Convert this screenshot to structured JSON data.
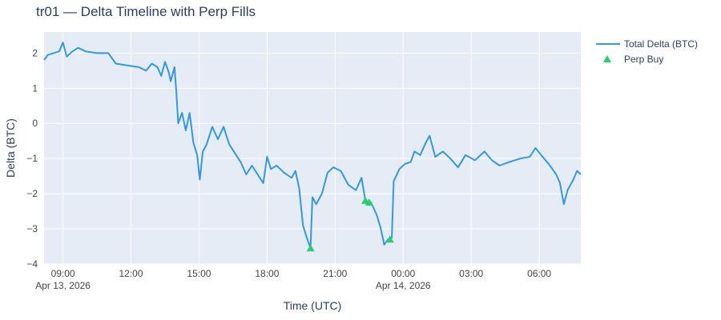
{
  "chart_data": {
    "type": "line",
    "title": "tr01 — Delta Timeline with Perp Fills",
    "xlabel": "Time (UTC)",
    "ylabel": "Delta (BTC)",
    "x_range": [
      "2026-04-13T08:10",
      "2026-04-14T07:50"
    ],
    "ylim": [
      -4,
      2.6
    ],
    "grid": true,
    "legend_position": "top-right",
    "plot_background": "#e5ecf6",
    "x_ticks": [
      {
        "t": "2026-04-13T09:00",
        "label": "09:00",
        "sublabel": "Apr 13, 2026"
      },
      {
        "t": "2026-04-13T12:00",
        "label": "12:00",
        "sublabel": ""
      },
      {
        "t": "2026-04-13T15:00",
        "label": "15:00",
        "sublabel": ""
      },
      {
        "t": "2026-04-13T18:00",
        "label": "18:00",
        "sublabel": ""
      },
      {
        "t": "2026-04-13T21:00",
        "label": "21:00",
        "sublabel": ""
      },
      {
        "t": "2026-04-14T00:00",
        "label": "00:00",
        "sublabel": "Apr 14, 2026"
      },
      {
        "t": "2026-04-14T03:00",
        "label": "03:00",
        "sublabel": ""
      },
      {
        "t": "2026-04-14T06:00",
        "label": "06:00",
        "sublabel": ""
      }
    ],
    "y_ticks": [
      {
        "v": 2,
        "label": "2"
      },
      {
        "v": 1,
        "label": "1"
      },
      {
        "v": 0,
        "label": "0"
      },
      {
        "v": -1,
        "label": "−1"
      },
      {
        "v": -2,
        "label": "−2"
      },
      {
        "v": -3,
        "label": "−3"
      },
      {
        "v": -4,
        "label": "−4"
      }
    ],
    "series": [
      {
        "name": "Total Delta (BTC)",
        "kind": "line",
        "color": "#3498db",
        "points": [
          [
            "2026-04-13T08:10",
            1.8
          ],
          [
            "2026-04-13T08:20",
            1.95
          ],
          [
            "2026-04-13T08:35",
            2.0
          ],
          [
            "2026-04-13T08:50",
            2.05
          ],
          [
            "2026-04-13T09:00",
            2.3
          ],
          [
            "2026-04-13T09:10",
            1.9
          ],
          [
            "2026-04-13T09:25",
            2.05
          ],
          [
            "2026-04-13T09:40",
            2.15
          ],
          [
            "2026-04-13T10:00",
            2.05
          ],
          [
            "2026-04-13T10:30",
            2.0
          ],
          [
            "2026-04-13T11:00",
            2.0
          ],
          [
            "2026-04-13T11:20",
            1.7
          ],
          [
            "2026-04-13T11:50",
            1.65
          ],
          [
            "2026-04-13T12:20",
            1.6
          ],
          [
            "2026-04-13T12:40",
            1.5
          ],
          [
            "2026-04-13T12:55",
            1.7
          ],
          [
            "2026-04-13T13:10",
            1.6
          ],
          [
            "2026-04-13T13:20",
            1.35
          ],
          [
            "2026-04-13T13:30",
            1.75
          ],
          [
            "2026-04-13T13:40",
            1.45
          ],
          [
            "2026-04-13T13:45",
            1.2
          ],
          [
            "2026-04-13T13:55",
            1.6
          ],
          [
            "2026-04-13T14:00",
            0.9
          ],
          [
            "2026-04-13T14:05",
            0.0
          ],
          [
            "2026-04-13T14:15",
            0.3
          ],
          [
            "2026-04-13T14:25",
            -0.2
          ],
          [
            "2026-04-13T14:35",
            0.3
          ],
          [
            "2026-04-13T14:45",
            -0.55
          ],
          [
            "2026-04-13T14:55",
            -0.9
          ],
          [
            "2026-04-13T15:02",
            -1.6
          ],
          [
            "2026-04-13T15:10",
            -0.8
          ],
          [
            "2026-04-13T15:20",
            -0.6
          ],
          [
            "2026-04-13T15:35",
            -0.1
          ],
          [
            "2026-04-13T15:50",
            -0.45
          ],
          [
            "2026-04-13T16:05",
            -0.1
          ],
          [
            "2026-04-13T16:20",
            -0.6
          ],
          [
            "2026-04-13T16:35",
            -0.85
          ],
          [
            "2026-04-13T16:50",
            -1.1
          ],
          [
            "2026-04-13T17:05",
            -1.45
          ],
          [
            "2026-04-13T17:20",
            -1.2
          ],
          [
            "2026-04-13T17:35",
            -1.45
          ],
          [
            "2026-04-13T17:50",
            -1.7
          ],
          [
            "2026-04-13T18:00",
            -0.95
          ],
          [
            "2026-04-13T18:10",
            -1.3
          ],
          [
            "2026-04-13T18:25",
            -1.2
          ],
          [
            "2026-04-13T18:45",
            -1.4
          ],
          [
            "2026-04-13T19:05",
            -1.55
          ],
          [
            "2026-04-13T19:15",
            -1.35
          ],
          [
            "2026-04-13T19:25",
            -1.85
          ],
          [
            "2026-04-13T19:35",
            -2.9
          ],
          [
            "2026-04-13T19:45",
            -3.25
          ],
          [
            "2026-04-13T19:55",
            -3.55
          ],
          [
            "2026-04-13T20:00",
            -2.1
          ],
          [
            "2026-04-13T20:10",
            -2.3
          ],
          [
            "2026-04-13T20:25",
            -2.0
          ],
          [
            "2026-04-13T20:40",
            -1.4
          ],
          [
            "2026-04-13T20:55",
            -1.25
          ],
          [
            "2026-04-13T21:15",
            -1.35
          ],
          [
            "2026-04-13T21:35",
            -1.75
          ],
          [
            "2026-04-13T21:55",
            -1.9
          ],
          [
            "2026-04-13T22:10",
            -1.55
          ],
          [
            "2026-04-13T22:20",
            -2.2
          ],
          [
            "2026-04-13T22:35",
            -2.25
          ],
          [
            "2026-04-13T22:50",
            -2.6
          ],
          [
            "2026-04-13T23:00",
            -2.95
          ],
          [
            "2026-04-13T23:10",
            -3.45
          ],
          [
            "2026-04-13T23:20",
            -3.3
          ],
          [
            "2026-04-13T23:30",
            -3.25
          ],
          [
            "2026-04-13T23:35",
            -1.65
          ],
          [
            "2026-04-13T23:50",
            -1.3
          ],
          [
            "2026-04-14T00:05",
            -1.15
          ],
          [
            "2026-04-14T00:20",
            -1.1
          ],
          [
            "2026-04-14T00:30",
            -0.8
          ],
          [
            "2026-04-14T00:45",
            -0.9
          ],
          [
            "2026-04-14T01:00",
            -0.55
          ],
          [
            "2026-04-14T01:10",
            -0.35
          ],
          [
            "2026-04-14T01:25",
            -0.95
          ],
          [
            "2026-04-14T01:45",
            -0.8
          ],
          [
            "2026-04-14T02:05",
            -1.0
          ],
          [
            "2026-04-14T02:25",
            -1.25
          ],
          [
            "2026-04-14T02:45",
            -0.9
          ],
          [
            "2026-04-14T03:10",
            -1.05
          ],
          [
            "2026-04-14T03:35",
            -0.8
          ],
          [
            "2026-04-14T03:55",
            -1.05
          ],
          [
            "2026-04-14T04:15",
            -1.2
          ],
          [
            "2026-04-14T04:40",
            -1.1
          ],
          [
            "2026-04-14T05:10",
            -1.0
          ],
          [
            "2026-04-14T05:35",
            -0.95
          ],
          [
            "2026-04-14T05:50",
            -0.7
          ],
          [
            "2026-04-14T06:05",
            -0.9
          ],
          [
            "2026-04-14T06:25",
            -1.15
          ],
          [
            "2026-04-14T06:45",
            -1.45
          ],
          [
            "2026-04-14T06:55",
            -1.7
          ],
          [
            "2026-04-14T07:05",
            -2.3
          ],
          [
            "2026-04-14T07:15",
            -1.9
          ],
          [
            "2026-04-14T07:30",
            -1.6
          ],
          [
            "2026-04-14T07:40",
            -1.35
          ],
          [
            "2026-04-14T07:50",
            -1.45
          ]
        ]
      },
      {
        "name": "Perp Buy",
        "kind": "markers",
        "marker": "triangle-up",
        "color": "#2ecc71",
        "points": [
          [
            "2026-04-13T19:55",
            -3.55
          ],
          [
            "2026-04-13T22:20",
            -2.2
          ],
          [
            "2026-04-13T22:30",
            -2.25
          ],
          [
            "2026-04-13T23:25",
            -3.3
          ]
        ]
      }
    ]
  }
}
